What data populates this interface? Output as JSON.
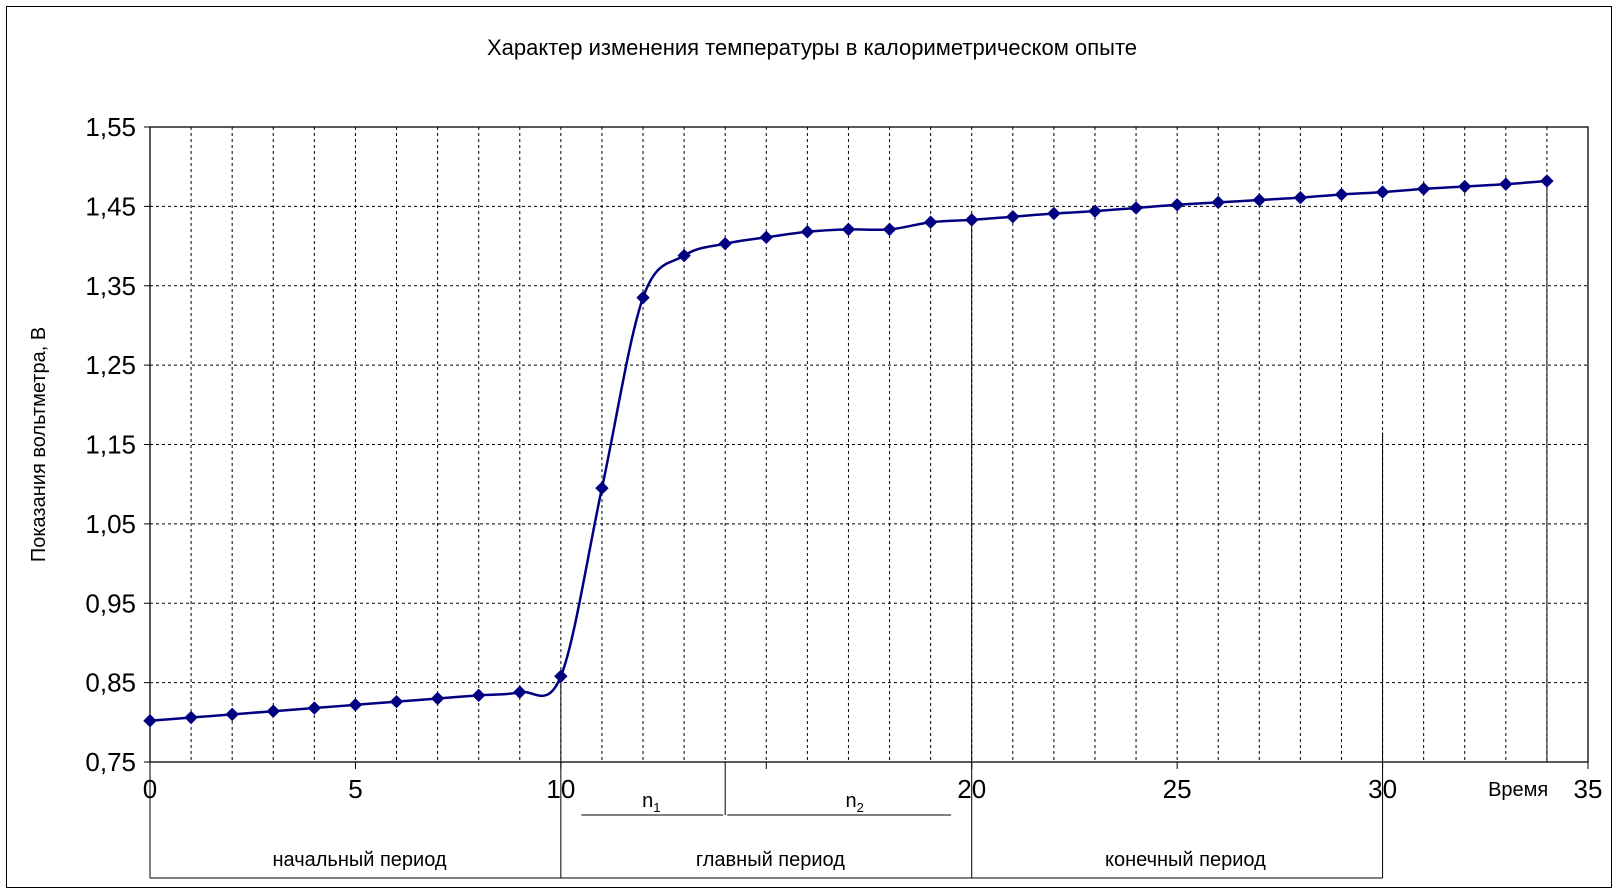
{
  "chart_data": {
    "type": "line",
    "title": "Характер изменения температуры в калориметрическом опыте",
    "ylabel": "Показания вольтметра, В",
    "xlabel": "Время",
    "xlim": [
      0,
      35
    ],
    "ylim": [
      0.75,
      1.55
    ],
    "x_ticks": [
      "0",
      "5",
      "10",
      "15",
      "20",
      "25",
      "30",
      "35"
    ],
    "y_ticks": [
      "0,75",
      "0,85",
      "0,95",
      "1,05",
      "1,15",
      "1,25",
      "1,35",
      "1,45",
      "1,55"
    ],
    "grid": true,
    "series": [
      {
        "x": [
          0,
          1,
          2,
          3,
          4,
          5,
          6,
          7,
          8,
          9,
          10,
          11,
          12,
          13,
          14,
          15,
          16,
          17,
          18,
          19,
          20,
          21,
          22,
          23,
          24,
          25,
          26,
          27,
          28,
          29,
          30,
          31,
          32,
          33,
          34
        ],
        "values": [
          0.802,
          0.806,
          0.81,
          0.814,
          0.818,
          0.822,
          0.826,
          0.83,
          0.834,
          0.838,
          0.858,
          1.095,
          1.335,
          1.388,
          1.403,
          1.411,
          1.418,
          1.421,
          1.421,
          1.43,
          1.433,
          1.437,
          1.441,
          1.444,
          1.448,
          1.452,
          1.455,
          1.458,
          1.461,
          1.465,
          1.468,
          1.472,
          1.475,
          1.478,
          1.482
        ],
        "color": "#000080"
      }
    ],
    "annotations": [
      {
        "text": "n",
        "sub": "1"
      },
      {
        "text": "n",
        "sub": "2"
      }
    ],
    "periods": [
      "начальный период",
      "главный период",
      "конечный период"
    ]
  }
}
